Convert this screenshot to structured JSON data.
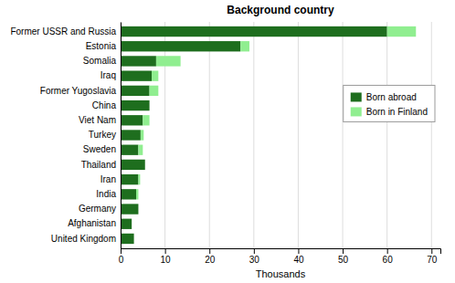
{
  "chart_data": {
    "type": "bar",
    "orientation": "horizontal",
    "stacked": true,
    "title": "Background country",
    "xlabel": "Thousands",
    "categories": [
      "Former USSR and Russia",
      "Estonia",
      "Somalia",
      "Iraq",
      "Former Yugoslavia",
      "China",
      "Viet Nam",
      "Turkey",
      "Sweden",
      "Thailand",
      "Iran",
      "India",
      "Germany",
      "Afghanistan",
      "United Kingdom"
    ],
    "series": [
      {
        "name": "Born abroad",
        "color": "#1e6e1e",
        "values": [
          60.0,
          27.0,
          8.0,
          7.0,
          6.5,
          6.5,
          5.0,
          4.5,
          4.0,
          5.5,
          4.0,
          3.5,
          4.0,
          2.5,
          3.0
        ]
      },
      {
        "name": "Born in Finland",
        "color": "#90ee90",
        "values": [
          6.5,
          2.0,
          5.5,
          1.5,
          2.0,
          0.0,
          1.5,
          0.7,
          1.0,
          0.0,
          0.4,
          0.5,
          0.0,
          0.0,
          0.0
        ]
      }
    ],
    "xlim": [
      0,
      72
    ],
    "xticks": [
      0,
      10,
      20,
      30,
      40,
      50,
      60,
      70
    ],
    "grid": true,
    "legend": "right"
  }
}
